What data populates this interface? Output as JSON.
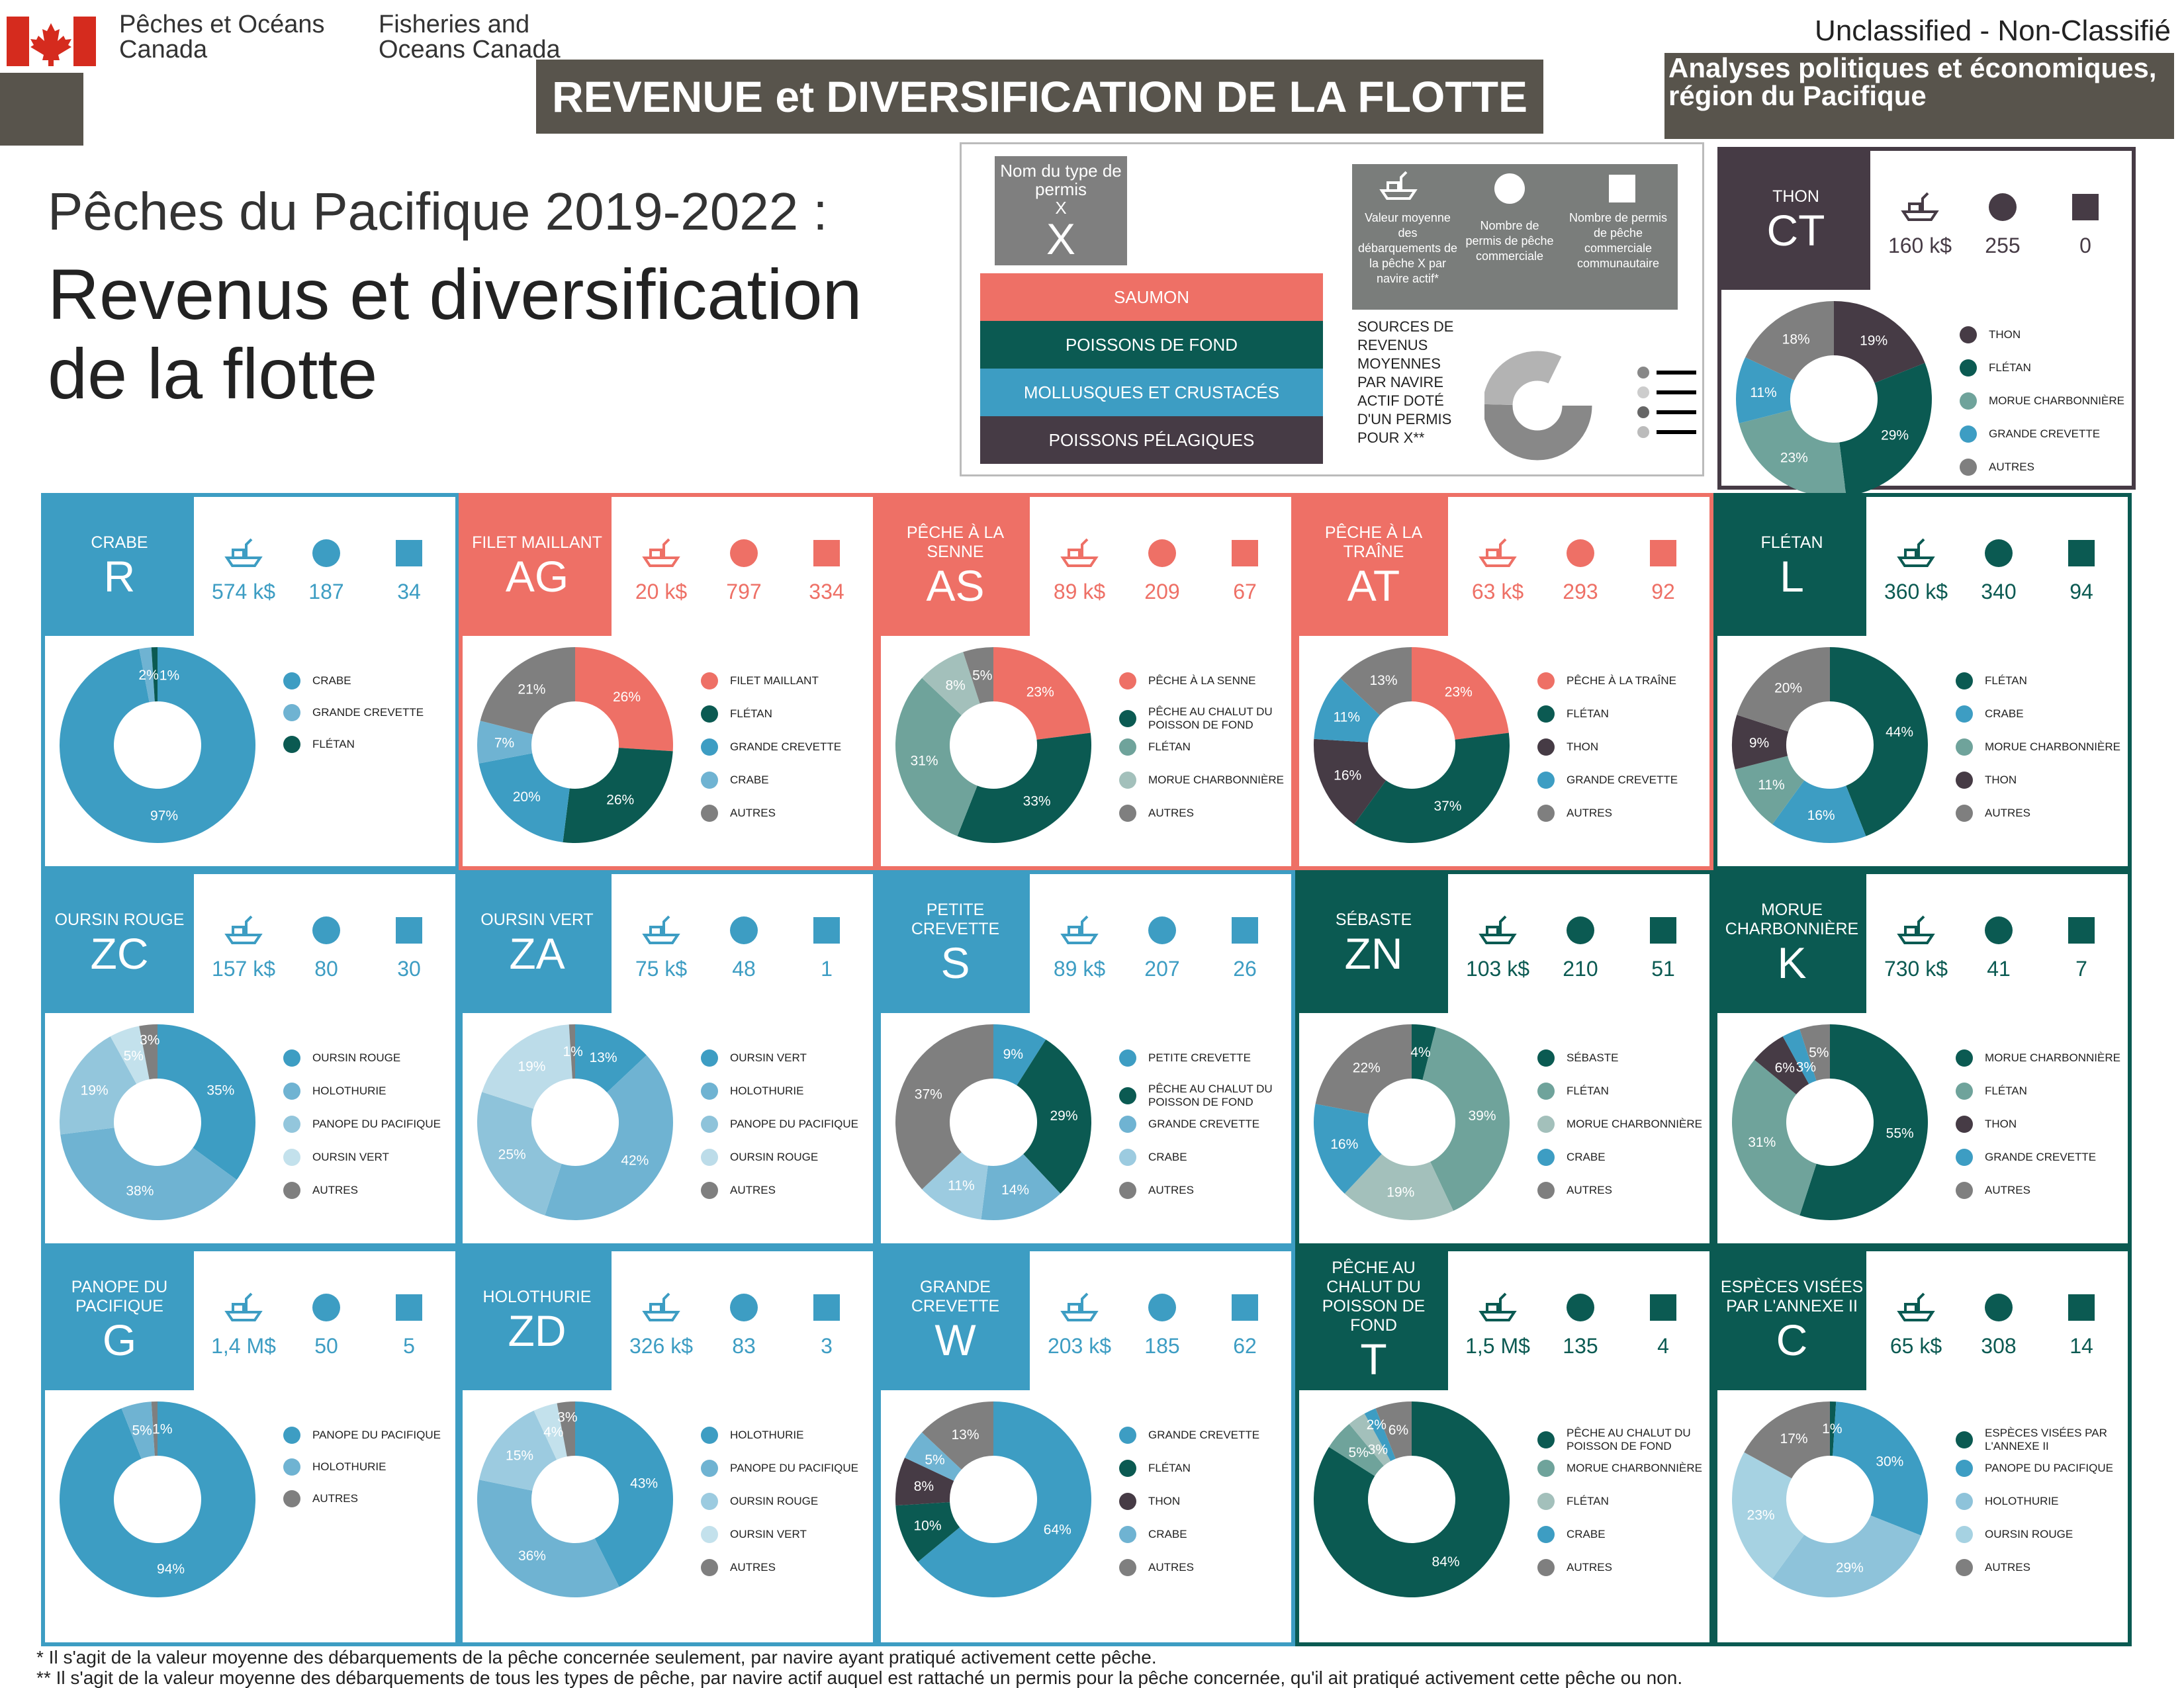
{
  "header": {
    "org_fr": "Pêches et Océans Canada",
    "org_en": "Fisheries and Oceans Canada",
    "banner": "REVENUE et DIVERSIFICATION DE LA FLOTTE",
    "classification": "Unclassified - Non-Classifié",
    "region": "Analyses politiques et économiques, région du Pacifique",
    "subtitle": "Pêches du Pacifique 2019-2022 :",
    "title": "Revenus et diversification de la flotte"
  },
  "colors": {
    "saumon": "#ee7066",
    "poissons_de_fond": "#0b5a52",
    "mollusques": "#3d9dc3",
    "pelagiques": "#463b45",
    "legend_grey": "#7a7d7b",
    "autres": "#7f7f7f"
  },
  "legend": {
    "permit_name": "Nom du type de permis",
    "permit_x": "X",
    "permit_code": "X",
    "categories": [
      "SAUMON",
      "POISSONS DE FOND",
      "MOLLUSQUES ET CRUSTACÉS",
      "POISSONS PÉLAGIQUES"
    ],
    "icon_boat": "Valeur moyenne des débarquements de la pêche X par navire actif*",
    "icon_circle": "Nombre de permis de pêche commerciale",
    "icon_square": "Nombre de permis de pêche commerciale communautaire",
    "sources": "SOURCES DE REVENUS MOYENNES PAR NAVIRE ACTIF DOTÉ D'UN PERMIS POUR X**",
    "example": {
      "name": "THON",
      "code": "CT",
      "value": "160 k$",
      "permits": "255",
      "community": "0",
      "color": "#463b45",
      "slices": [
        [
          "THON",
          19,
          "#463b45"
        ],
        [
          "FLÉTAN",
          29,
          "#0b5a52"
        ],
        [
          "MORUE CHARBONNIÈRE",
          23,
          "#6fa39b"
        ],
        [
          "GRANDE CREVETTE",
          11,
          "#3d9dc3"
        ],
        [
          "AUTRES",
          18,
          "#7f7f7f"
        ]
      ]
    }
  },
  "panels": [
    {
      "name": "CRABE",
      "code": "R",
      "value": "574 k$",
      "permits": "187",
      "community": "34",
      "color": "#3d9dc3",
      "slices": [
        [
          "CRABE",
          97,
          "#3d9dc3"
        ],
        [
          "GRANDE CREVETTE",
          2,
          "#6fb3d2"
        ],
        [
          "FLÉTAN",
          1,
          "#0b5a52"
        ]
      ]
    },
    {
      "name": "FILET MAILLANT",
      "code": "AG",
      "value": "20 k$",
      "permits": "797",
      "community": "334",
      "color": "#ee7066",
      "slices": [
        [
          "FILET MAILLANT",
          26,
          "#ee7066"
        ],
        [
          "FLÉTAN",
          26,
          "#0b5a52"
        ],
        [
          "GRANDE CREVETTE",
          20,
          "#3d9dc3"
        ],
        [
          "CRABE",
          7,
          "#6fb3d2"
        ],
        [
          "AUTRES",
          21,
          "#7f7f7f"
        ]
      ]
    },
    {
      "name": "PÊCHE À LA SENNE",
      "code": "AS",
      "value": "89 k$",
      "permits": "209",
      "community": "67",
      "color": "#ee7066",
      "slices": [
        [
          "PÊCHE À LA SENNE",
          23,
          "#ee7066"
        ],
        [
          "PÊCHE AU CHALUT DU POISSON DE FOND",
          33,
          "#0b5a52"
        ],
        [
          "FLÉTAN",
          31,
          "#6fa39b"
        ],
        [
          "MORUE CHARBONNIÈRE",
          8,
          "#a3c0bb"
        ],
        [
          "AUTRES",
          5,
          "#7f7f7f"
        ]
      ]
    },
    {
      "name": "PÊCHE À LA TRAÎNE",
      "code": "AT",
      "value": "63 k$",
      "permits": "293",
      "community": "92",
      "color": "#ee7066",
      "slices": [
        [
          "PÊCHE À LA TRAÎNE",
          23,
          "#ee7066"
        ],
        [
          "FLÉTAN",
          37,
          "#0b5a52"
        ],
        [
          "THON",
          16,
          "#463b45"
        ],
        [
          "GRANDE CREVETTE",
          11,
          "#3d9dc3"
        ],
        [
          "AUTRES",
          13,
          "#7f7f7f"
        ]
      ]
    },
    {
      "name": "FLÉTAN",
      "code": "L",
      "value": "360 k$",
      "permits": "340",
      "community": "94",
      "color": "#0b5a52",
      "slices": [
        [
          "FLÉTAN",
          44,
          "#0b5a52"
        ],
        [
          "CRABE",
          16,
          "#3d9dc3"
        ],
        [
          "MORUE CHARBONNIÈRE",
          11,
          "#6fa39b"
        ],
        [
          "THON",
          9,
          "#463b45"
        ],
        [
          "AUTRES",
          20,
          "#7f7f7f"
        ]
      ]
    },
    {
      "name": "OURSIN ROUGE",
      "code": "ZC",
      "value": "157 k$",
      "permits": "80",
      "community": "30",
      "color": "#3d9dc3",
      "slices": [
        [
          "OURSIN ROUGE",
          35,
          "#3d9dc3"
        ],
        [
          "HOLOTHURIE",
          38,
          "#6fb3d2"
        ],
        [
          "PANOPE DU PACIFIQUE",
          19,
          "#93c6dc"
        ],
        [
          "OURSIN VERT",
          5,
          "#c3e1ec"
        ],
        [
          "AUTRES",
          3,
          "#7f7f7f"
        ]
      ]
    },
    {
      "name": "OURSIN VERT",
      "code": "ZA",
      "value": "75 k$",
      "permits": "48",
      "community": "1",
      "color": "#3d9dc3",
      "slices": [
        [
          "OURSIN VERT",
          13,
          "#3d9dc3"
        ],
        [
          "HOLOTHURIE",
          42,
          "#6fb3d2"
        ],
        [
          "PANOPE DU PACIFIQUE",
          25,
          "#8ec3da"
        ],
        [
          "OURSIN ROUGE",
          19,
          "#bcdce9"
        ],
        [
          "AUTRES",
          1,
          "#7f7f7f"
        ]
      ]
    },
    {
      "name": "PETITE CREVETTE",
      "code": "S",
      "value": "89 k$",
      "permits": "207",
      "community": "26",
      "color": "#3d9dc3",
      "slices": [
        [
          "PETITE CREVETTE",
          9,
          "#3d9dc3"
        ],
        [
          "PÊCHE AU CHALUT DU POISSON DE FOND",
          29,
          "#0b5a52"
        ],
        [
          "GRANDE CREVETTE",
          14,
          "#6fb3d2"
        ],
        [
          "CRABE",
          11,
          "#9ccbe0"
        ],
        [
          "AUTRES",
          37,
          "#7f7f7f"
        ]
      ]
    },
    {
      "name": "SÉBASTE",
      "code": "ZN",
      "value": "103 k$",
      "permits": "210",
      "community": "51",
      "color": "#0b5a52",
      "slices": [
        [
          "SÉBASTE",
          4,
          "#0b5a52"
        ],
        [
          "FLÉTAN",
          39,
          "#6fa39b"
        ],
        [
          "MORUE CHARBONNIÈRE",
          19,
          "#a3c0bb"
        ],
        [
          "CRABE",
          16,
          "#3d9dc3"
        ],
        [
          "AUTRES",
          22,
          "#7f7f7f"
        ]
      ]
    },
    {
      "name": "MORUE CHARBONNIÈRE",
      "code": "K",
      "value": "730 k$",
      "permits": "41",
      "community": "7",
      "color": "#0b5a52",
      "slices": [
        [
          "MORUE CHARBONNIÈRE",
          55,
          "#0b5a52"
        ],
        [
          "FLÉTAN",
          31,
          "#6fa39b"
        ],
        [
          "THON",
          6,
          "#463b45"
        ],
        [
          "GRANDE CREVETTE",
          3,
          "#3d9dc3"
        ],
        [
          "AUTRES",
          5,
          "#7f7f7f"
        ]
      ]
    },
    {
      "name": "PANOPE DU PACIFIQUE",
      "code": "G",
      "value": "1,4 M$",
      "permits": "50",
      "community": "5",
      "color": "#3d9dc3",
      "slices": [
        [
          "PANOPE DU PACIFIQUE",
          94,
          "#3d9dc3"
        ],
        [
          "HOLOTHURIE",
          5,
          "#6fb3d2"
        ],
        [
          "AUTRES",
          1,
          "#7f7f7f"
        ]
      ]
    },
    {
      "name": "HOLOTHURIE",
      "code": "ZD",
      "value": "326 k$",
      "permits": "83",
      "community": "3",
      "color": "#3d9dc3",
      "slices": [
        [
          "HOLOTHURIE",
          43,
          "#3d9dc3"
        ],
        [
          "PANOPE DU PACIFIQUE",
          36,
          "#6fb3d2"
        ],
        [
          "OURSIN ROUGE",
          15,
          "#9ccbe0"
        ],
        [
          "OURSIN VERT",
          4,
          "#c3e1ec"
        ],
        [
          "AUTRES",
          3,
          "#7f7f7f"
        ]
      ]
    },
    {
      "name": "GRANDE CREVETTE",
      "code": "W",
      "value": "203 k$",
      "permits": "185",
      "community": "62",
      "color": "#3d9dc3",
      "slices": [
        [
          "GRANDE CREVETTE",
          64,
          "#3d9dc3"
        ],
        [
          "FLÉTAN",
          10,
          "#0b5a52"
        ],
        [
          "THON",
          8,
          "#463b45"
        ],
        [
          "CRABE",
          5,
          "#6fb3d2"
        ],
        [
          "AUTRES",
          13,
          "#7f7f7f"
        ]
      ]
    },
    {
      "name": "PÊCHE AU CHALUT DU POISSON DE FOND",
      "code": "T",
      "value": "1,5 M$",
      "permits": "135",
      "community": "4",
      "color": "#0b5a52",
      "slices": [
        [
          "PÊCHE AU CHALUT DU POISSON DE FOND",
          84,
          "#0b5a52"
        ],
        [
          "MORUE CHARBONNIÈRE",
          5,
          "#6fa39b"
        ],
        [
          "FLÉTAN",
          3,
          "#a3c0bb"
        ],
        [
          "CRABE",
          2,
          "#3d9dc3"
        ],
        [
          "AUTRES",
          6,
          "#7f7f7f"
        ]
      ]
    },
    {
      "name": "ESPÈCES VISÉES PAR L'ANNEXE II",
      "code": "C",
      "value": "65 k$",
      "permits": "308",
      "community": "14",
      "color": "#0b5a52",
      "slices": [
        [
          "ESPÈCES VISÉES PAR L'ANNEXE II",
          1,
          "#0b5a52"
        ],
        [
          "PANOPE DU PACIFIQUE",
          30,
          "#3d9dc3"
        ],
        [
          "HOLOTHURIE",
          29,
          "#8ec3da"
        ],
        [
          "OURSIN ROUGE",
          23,
          "#a6d2e2"
        ],
        [
          "AUTRES",
          17,
          "#7f7f7f"
        ]
      ]
    }
  ],
  "footnotes": [
    "* Il s'agit de la valeur moyenne des débarquements de la pêche concernée seulement, par navire ayant pratiqué activement cette pêche.",
    "** Il s'agit de la valeur moyenne des débarquements de tous les types de pêche, par navire actif auquel est rattaché un permis pour la pêche concernée, qu'il ait pratiqué activement cette pêche ou non."
  ]
}
